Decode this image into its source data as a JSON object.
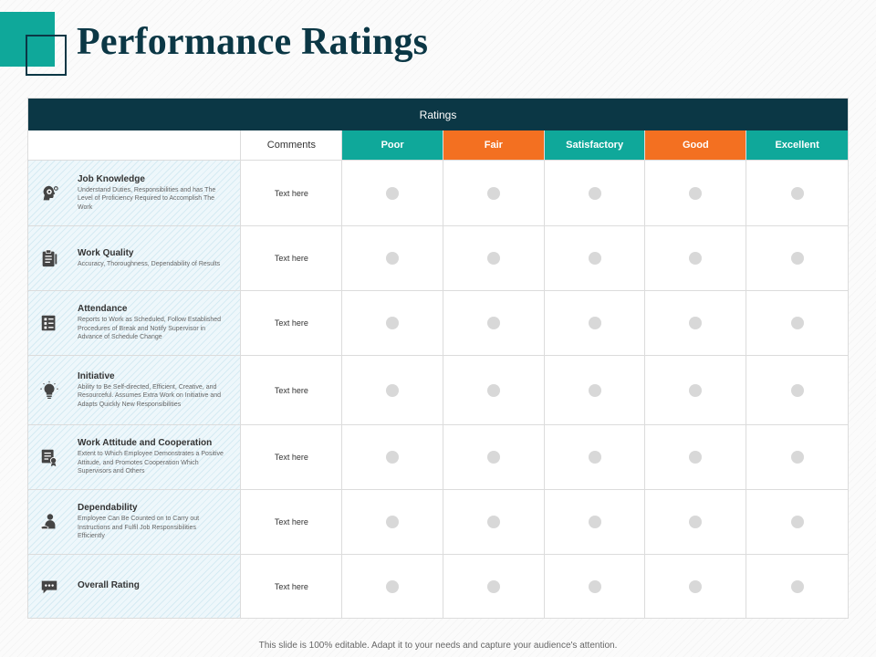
{
  "title": "Performance Ratings",
  "table": {
    "header": "Ratings",
    "comments_label": "Comments",
    "rating_levels": [
      "Poor",
      "Fair",
      "Satisfactory",
      "Good",
      "Excellent"
    ],
    "rating_colors": {
      "teal": "#0fa89a",
      "orange": "#f37021",
      "header_bar": "#0b3745"
    },
    "rows": [
      {
        "title": "Job Knowledge",
        "icon": "head-gears-icon",
        "description": "Understand Duties, Responsibilities and has The Level of Proficiency Required to Accomplish The Work",
        "comment": "Text here"
      },
      {
        "title": "Work Quality",
        "icon": "clipboard-icon",
        "description": "Accuracy, Thoroughness, Dependability of Results",
        "comment": "Text here"
      },
      {
        "title": "Attendance",
        "icon": "schedule-board-icon",
        "description": "Reports to Work as Scheduled, Follow Established Procedures of Break and Notify Supervisor in Advance of Schedule Change",
        "comment": "Text here"
      },
      {
        "title": "Initiative",
        "icon": "lightbulb-icon",
        "description": "Ability to Be Self-directed, Efficient, Creative, and Resourceful. Assumes Extra Work on Initiative and Adapts Quickly New Responsibilities",
        "comment": "Text here"
      },
      {
        "title": "Work Attitude and Cooperation",
        "icon": "certificate-icon",
        "description": "Extent to Which Employee Demonstrates a Positive Attitude, and Promotes Cooperation Which Supervisors and Others",
        "comment": "Text here"
      },
      {
        "title": "Dependability",
        "icon": "person-hand-icon",
        "description": "Employee Can Be Counted on to Carry out Instructions and Fulfil Job Responsibilities Efficiently",
        "comment": "Text here"
      },
      {
        "title": "Overall Rating",
        "icon": "chat-bubble-icon",
        "description": "",
        "comment": "Text here"
      }
    ]
  },
  "footer": "This slide is 100% editable. Adapt it to your needs and capture your audience's attention."
}
